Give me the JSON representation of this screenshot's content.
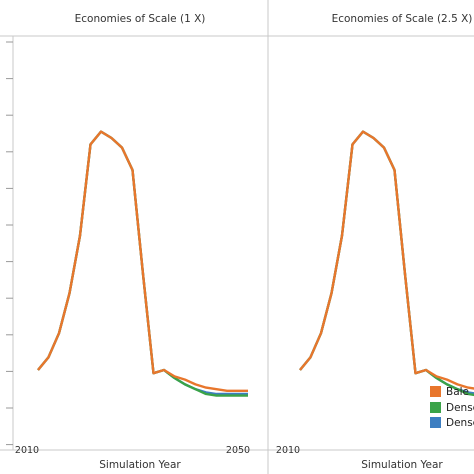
{
  "chart_data": {
    "type": "line",
    "xlabel": "Simulation Year",
    "x_ticks": [
      "2010",
      "2050"
    ],
    "x": [
      2010,
      2012,
      2014,
      2016,
      2018,
      2020,
      2022,
      2024,
      2026,
      2028,
      2030,
      2032,
      2034,
      2036,
      2038,
      2040,
      2042,
      2044,
      2046,
      2048,
      2050
    ],
    "legend": {
      "placement": "bottom-right",
      "entries": [
        "Bale",
        "Dense",
        "Dense"
      ]
    },
    "colors": [
      "#e8762c",
      "#3aa348",
      "#3d7ec1"
    ],
    "panels": [
      {
        "title": "Economies of Scale (1 X)",
        "series": [
          {
            "name": "Bale",
            "values": [
              20,
              19.2,
              17.7,
              15.2,
              11.6,
              5.9,
              5.1,
              5.5,
              6.1,
              7.5,
              14,
              20.2,
              20.0,
              20.4,
              20.6,
              20.9,
              21.1,
              21.2,
              21.3,
              21.3,
              21.3
            ]
          },
          {
            "name": "Dense",
            "values": [
              20,
              19.2,
              17.7,
              15.2,
              11.6,
              5.9,
              5.1,
              5.5,
              6.1,
              7.5,
              14,
              20.2,
              20.0,
              20.5,
              20.9,
              21.2,
              21.5,
              21.6,
              21.6,
              21.6,
              21.6
            ]
          },
          {
            "name": "Dense",
            "values": [
              20,
              19.2,
              17.7,
              15.2,
              11.6,
              5.9,
              5.1,
              5.5,
              6.1,
              7.5,
              14,
              20.2,
              20.0,
              20.5,
              20.9,
              21.2,
              21.4,
              21.5,
              21.5,
              21.5,
              21.5
            ]
          }
        ]
      },
      {
        "title": "Economies of Scale (2.5 X)",
        "series": [
          {
            "name": "Bale",
            "values": [
              20,
              19.2,
              17.7,
              15.2,
              11.6,
              5.9,
              5.1,
              5.5,
              6.1,
              7.5,
              14,
              20.2,
              20.0,
              20.4,
              20.6,
              20.9,
              21.1,
              21.2,
              21.3,
              21.3,
              21.3
            ]
          },
          {
            "name": "Dense",
            "values": [
              20,
              19.2,
              17.7,
              15.2,
              11.6,
              5.9,
              5.1,
              5.5,
              6.1,
              7.5,
              14,
              20.2,
              20.0,
              20.5,
              20.9,
              21.2,
              21.5,
              21.6,
              21.6,
              21.6,
              21.6
            ]
          },
          {
            "name": "Dense",
            "values": [
              20,
              19.2,
              17.7,
              15.2,
              11.6,
              5.9,
              5.1,
              5.5,
              6.1,
              7.5,
              14,
              20.2,
              20.0,
              20.5,
              20.9,
              21.2,
              21.4,
              21.5,
              21.5,
              21.5,
              21.5
            ]
          }
        ]
      }
    ]
  }
}
